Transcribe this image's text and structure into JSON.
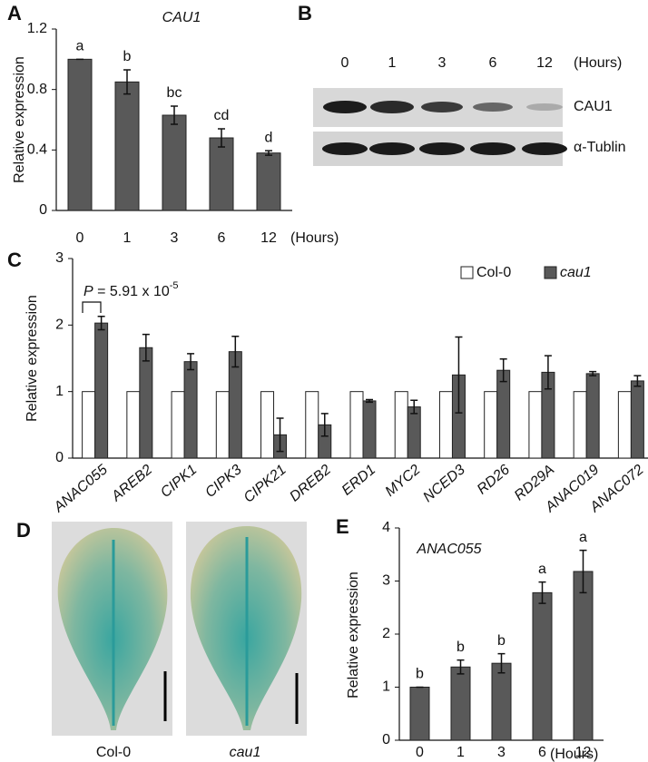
{
  "chart_data": [
    {
      "type": "bar",
      "panel_label": "A",
      "title": "CAU1",
      "y_label": "Relative expression",
      "categories": [
        "0",
        "1",
        "3",
        "6",
        "12"
      ],
      "x_unit": "(Hours)",
      "values": [
        1.0,
        0.85,
        0.63,
        0.48,
        0.38
      ],
      "errors": [
        0,
        0.08,
        0.06,
        0.06,
        0.015
      ],
      "letters": [
        "a",
        "b",
        "bc",
        "cd",
        "d"
      ],
      "color": "#595959",
      "ylim": [
        0,
        1.2
      ],
      "yticks": [
        0,
        0.4,
        0.8,
        1.2
      ]
    },
    {
      "type": "bar",
      "panel_label": "C",
      "y_label": "Relative expression",
      "categories": [
        "ANAC055",
        "AREB2",
        "CIPK1",
        "CIPK3",
        "CIPK21",
        "DREB2",
        "ERD1",
        "MYC2",
        "NCED3",
        "RD26",
        "RD29A",
        "ANAC019",
        "ANAC072"
      ],
      "series": [
        {
          "name": "Col-0",
          "color": "#ffffff",
          "values": [
            1,
            1,
            1,
            1,
            1,
            1,
            1,
            1,
            1,
            1,
            1,
            1,
            1
          ]
        },
        {
          "name": "cau1",
          "color": "#595959",
          "values": [
            2.03,
            1.66,
            1.45,
            1.6,
            0.35,
            0.5,
            0.86,
            0.77,
            1.25,
            1.32,
            1.29,
            1.27,
            1.16
          ],
          "errors": [
            0.1,
            0.2,
            0.12,
            0.23,
            0.25,
            0.17,
            0.02,
            0.1,
            0.57,
            0.17,
            0.25,
            0.03,
            0.08
          ]
        }
      ],
      "legend": "upper right",
      "annotation": {
        "symbol": "P",
        "text": " = 5.91 x 10",
        "exponent": "-5"
      },
      "ylim": [
        0,
        3
      ],
      "yticks": [
        0,
        1,
        2,
        3
      ]
    },
    {
      "type": "bar",
      "panel_label": "E",
      "title": "ANAC055",
      "y_label": "Relative expression",
      "categories": [
        "0",
        "1",
        "3",
        "6",
        "12"
      ],
      "x_unit": "(Hours)",
      "values": [
        1,
        1.38,
        1.45,
        2.78,
        3.18
      ],
      "errors": [
        0,
        0.13,
        0.18,
        0.2,
        0.4
      ],
      "letters": [
        "b",
        "b",
        "b",
        "a",
        "a"
      ],
      "color": "#595959",
      "ylim": [
        0,
        4
      ],
      "yticks": [
        0,
        1,
        2,
        3,
        4
      ]
    }
  ],
  "panel_b": {
    "label": "B",
    "lanes": [
      "0",
      "1",
      "3",
      "6",
      "12"
    ],
    "unit": "(Hours)",
    "rows": [
      "CAU1",
      "α-Tublin"
    ]
  },
  "panel_d": {
    "label": "D",
    "samples": [
      "Col-0",
      "cau1"
    ]
  }
}
